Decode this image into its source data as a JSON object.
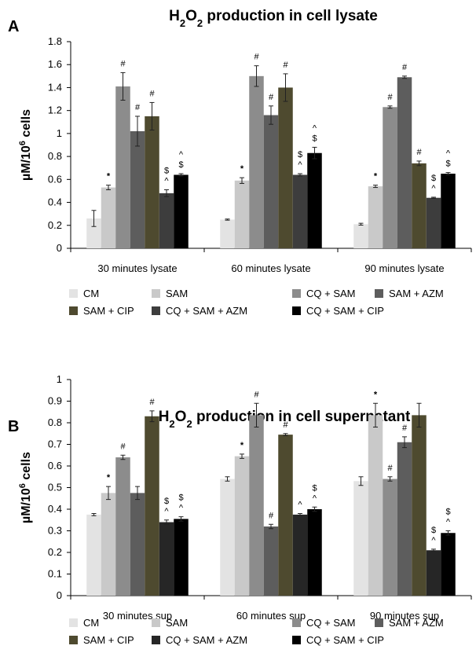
{
  "chart_data": [
    {
      "type": "bar",
      "panel": "A",
      "title_parts": [
        "H",
        "2",
        "O",
        "2",
        " production in cell lysate"
      ],
      "ylabel_parts": [
        "µM/10",
        "6",
        " cells"
      ],
      "ylim": [
        0,
        1.8
      ],
      "yticks": [
        "0",
        "0.2",
        "0.4",
        "0.6",
        "0.8",
        "1",
        "1.2",
        "1.4",
        "1.6",
        "1.8"
      ],
      "categories": [
        "30 minutes lysate",
        "60 minutes lysate",
        "90 minutes lysate"
      ],
      "series": [
        {
          "name": "CM",
          "color": "#e3e3e3",
          "values": [
            0.26,
            0.25,
            0.21
          ],
          "errors": [
            0.07,
            0.005,
            0.008
          ],
          "annotations": [
            "",
            "",
            ""
          ]
        },
        {
          "name": "SAM",
          "color": "#c9c9c9",
          "values": [
            0.53,
            0.59,
            0.54
          ],
          "errors": [
            0.02,
            0.025,
            0.01
          ],
          "annotations": [
            "*",
            "*",
            "*"
          ]
        },
        {
          "name": "CQ + SAM",
          "color": "#8c8c8c",
          "values": [
            1.41,
            1.5,
            1.23
          ],
          "errors": [
            0.12,
            0.09,
            0.01
          ],
          "annotations": [
            "#",
            "#",
            "#"
          ]
        },
        {
          "name": "SAM + AZM",
          "color": "#5d5d5d",
          "values": [
            1.02,
            1.16,
            1.49
          ],
          "errors": [
            0.13,
            0.08,
            0.01
          ],
          "annotations": [
            "#",
            "#",
            "#"
          ]
        },
        {
          "name": "SAM + CIP",
          "color": "#4e4a2f",
          "values": [
            1.15,
            1.4,
            0.74
          ],
          "errors": [
            0.12,
            0.12,
            0.02
          ],
          "annotations": [
            "#",
            "#",
            "#"
          ]
        },
        {
          "name": "CQ + SAM + AZM",
          "color": "#3d3d3d",
          "values": [
            0.48,
            0.64,
            0.44
          ],
          "errors": [
            0.03,
            0.01,
            0.005
          ],
          "annotations": [
            "$\n^",
            "$\n^",
            "$\n^"
          ]
        },
        {
          "name": "CQ + SAM + CIP",
          "color": "#000000",
          "values": [
            0.64,
            0.83,
            0.65
          ],
          "errors": [
            0.01,
            0.05,
            0.01
          ],
          "annotations": [
            "^\n$",
            "^\n$",
            "^\n$"
          ]
        }
      ]
    },
    {
      "type": "bar",
      "panel": "B",
      "title_parts": [
        "H",
        "2",
        "O",
        "2",
        " production in cell supernatant"
      ],
      "ylabel_parts": [
        "µM/10",
        "6",
        " cells"
      ],
      "ylim": [
        0,
        1.0
      ],
      "yticks": [
        "0",
        "0.1",
        "0.2",
        "0.3",
        "0.4",
        "0.5",
        "0.6",
        "0.7",
        "0.8",
        "0.9",
        "1"
      ],
      "categories": [
        "30 minutes sup",
        "60 minutes sup",
        "90 minutes sup"
      ],
      "series": [
        {
          "name": "CM",
          "color": "#e3e3e3",
          "values": [
            0.375,
            0.54,
            0.53
          ],
          "errors": [
            0.005,
            0.01,
            0.02
          ],
          "annotations": [
            "",
            "",
            ""
          ]
        },
        {
          "name": "SAM",
          "color": "#c9c9c9",
          "values": [
            0.475,
            0.645,
            0.835
          ],
          "errors": [
            0.03,
            0.01,
            0.055
          ],
          "annotations": [
            "*",
            "*",
            "*"
          ]
        },
        {
          "name": "CQ + SAM",
          "color": "#8c8c8c",
          "values": [
            0.64,
            0.835,
            0.54
          ],
          "errors": [
            0.01,
            0.055,
            0.01
          ],
          "annotations": [
            "#",
            "#",
            "#"
          ]
        },
        {
          "name": "SAM + AZM",
          "color": "#5d5d5d",
          "values": [
            0.475,
            0.32,
            0.71
          ],
          "errors": [
            0.03,
            0.01,
            0.025
          ],
          "annotations": [
            "",
            "#",
            "#"
          ]
        },
        {
          "name": "SAM + CIP",
          "color": "#4e4a2f",
          "values": [
            0.83,
            0.745,
            0.835
          ],
          "errors": [
            0.025,
            0.005,
            0.055
          ],
          "annotations": [
            "#",
            "#",
            ""
          ]
        },
        {
          "name": "CQ + SAM + AZM",
          "color": "#262626",
          "values": [
            0.34,
            0.375,
            0.21
          ],
          "errors": [
            0.01,
            0.005,
            0.005
          ],
          "annotations": [
            "$\n^",
            "^",
            "$\n^"
          ]
        },
        {
          "name": "CQ + SAM + CIP",
          "color": "#000000",
          "values": [
            0.355,
            0.4,
            0.29
          ],
          "errors": [
            0.01,
            0.01,
            0.01
          ],
          "annotations": [
            "$\n^",
            "$\n^",
            "$\n^"
          ]
        }
      ]
    }
  ]
}
